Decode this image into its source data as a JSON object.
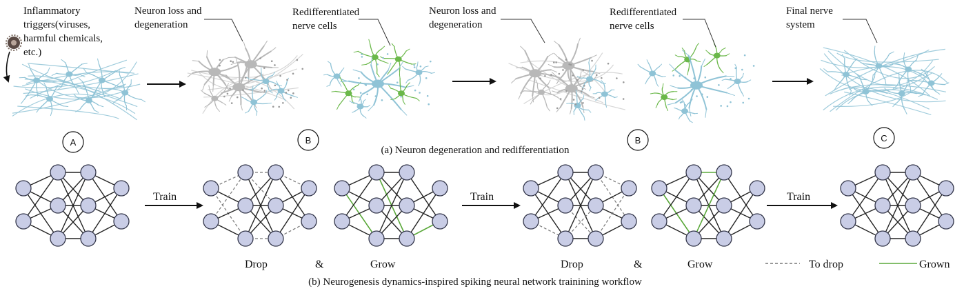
{
  "part_a": {
    "caption": "(a) Neuron degeneration and redifferentiation",
    "labels": [
      {
        "id": "trigger",
        "lines": [
          "Inflammatory",
          "triggers(viruses,",
          "harmful chemicals,",
          "etc.)"
        ]
      },
      {
        "id": "loss1",
        "lines": [
          "Neuron loss and",
          "degeneration"
        ]
      },
      {
        "id": "redif1",
        "lines": [
          "Redifferentiated",
          "nerve cells"
        ]
      },
      {
        "id": "loss2",
        "lines": [
          "Neuron loss and",
          "degeneration"
        ]
      },
      {
        "id": "redif2",
        "lines": [
          "Redifferentiated",
          "nerve cells"
        ]
      },
      {
        "id": "final",
        "lines": [
          "Final nerve",
          "system"
        ]
      }
    ],
    "stages": [
      "A",
      "B",
      "B",
      "C"
    ]
  },
  "part_b": {
    "caption": "(b) Neurogenesis dynamics-inspired spiking neural network trainining workflow",
    "train_labels": [
      "Train",
      "Train",
      "Train"
    ],
    "drop_label": "Drop",
    "and_label": "&",
    "grow_label": "Grow",
    "legend": {
      "to_drop": "To drop",
      "grown": "Grown"
    }
  },
  "colors": {
    "node_fill": "#c9cde6",
    "node_stroke": "#33364a",
    "edge": "#222222",
    "dashed": "#777777",
    "grown": "#5aa83a",
    "neuron_blue": "#8fc3d6",
    "neuron_grey": "#b8b8b8",
    "neuron_green": "#6bb84a"
  }
}
